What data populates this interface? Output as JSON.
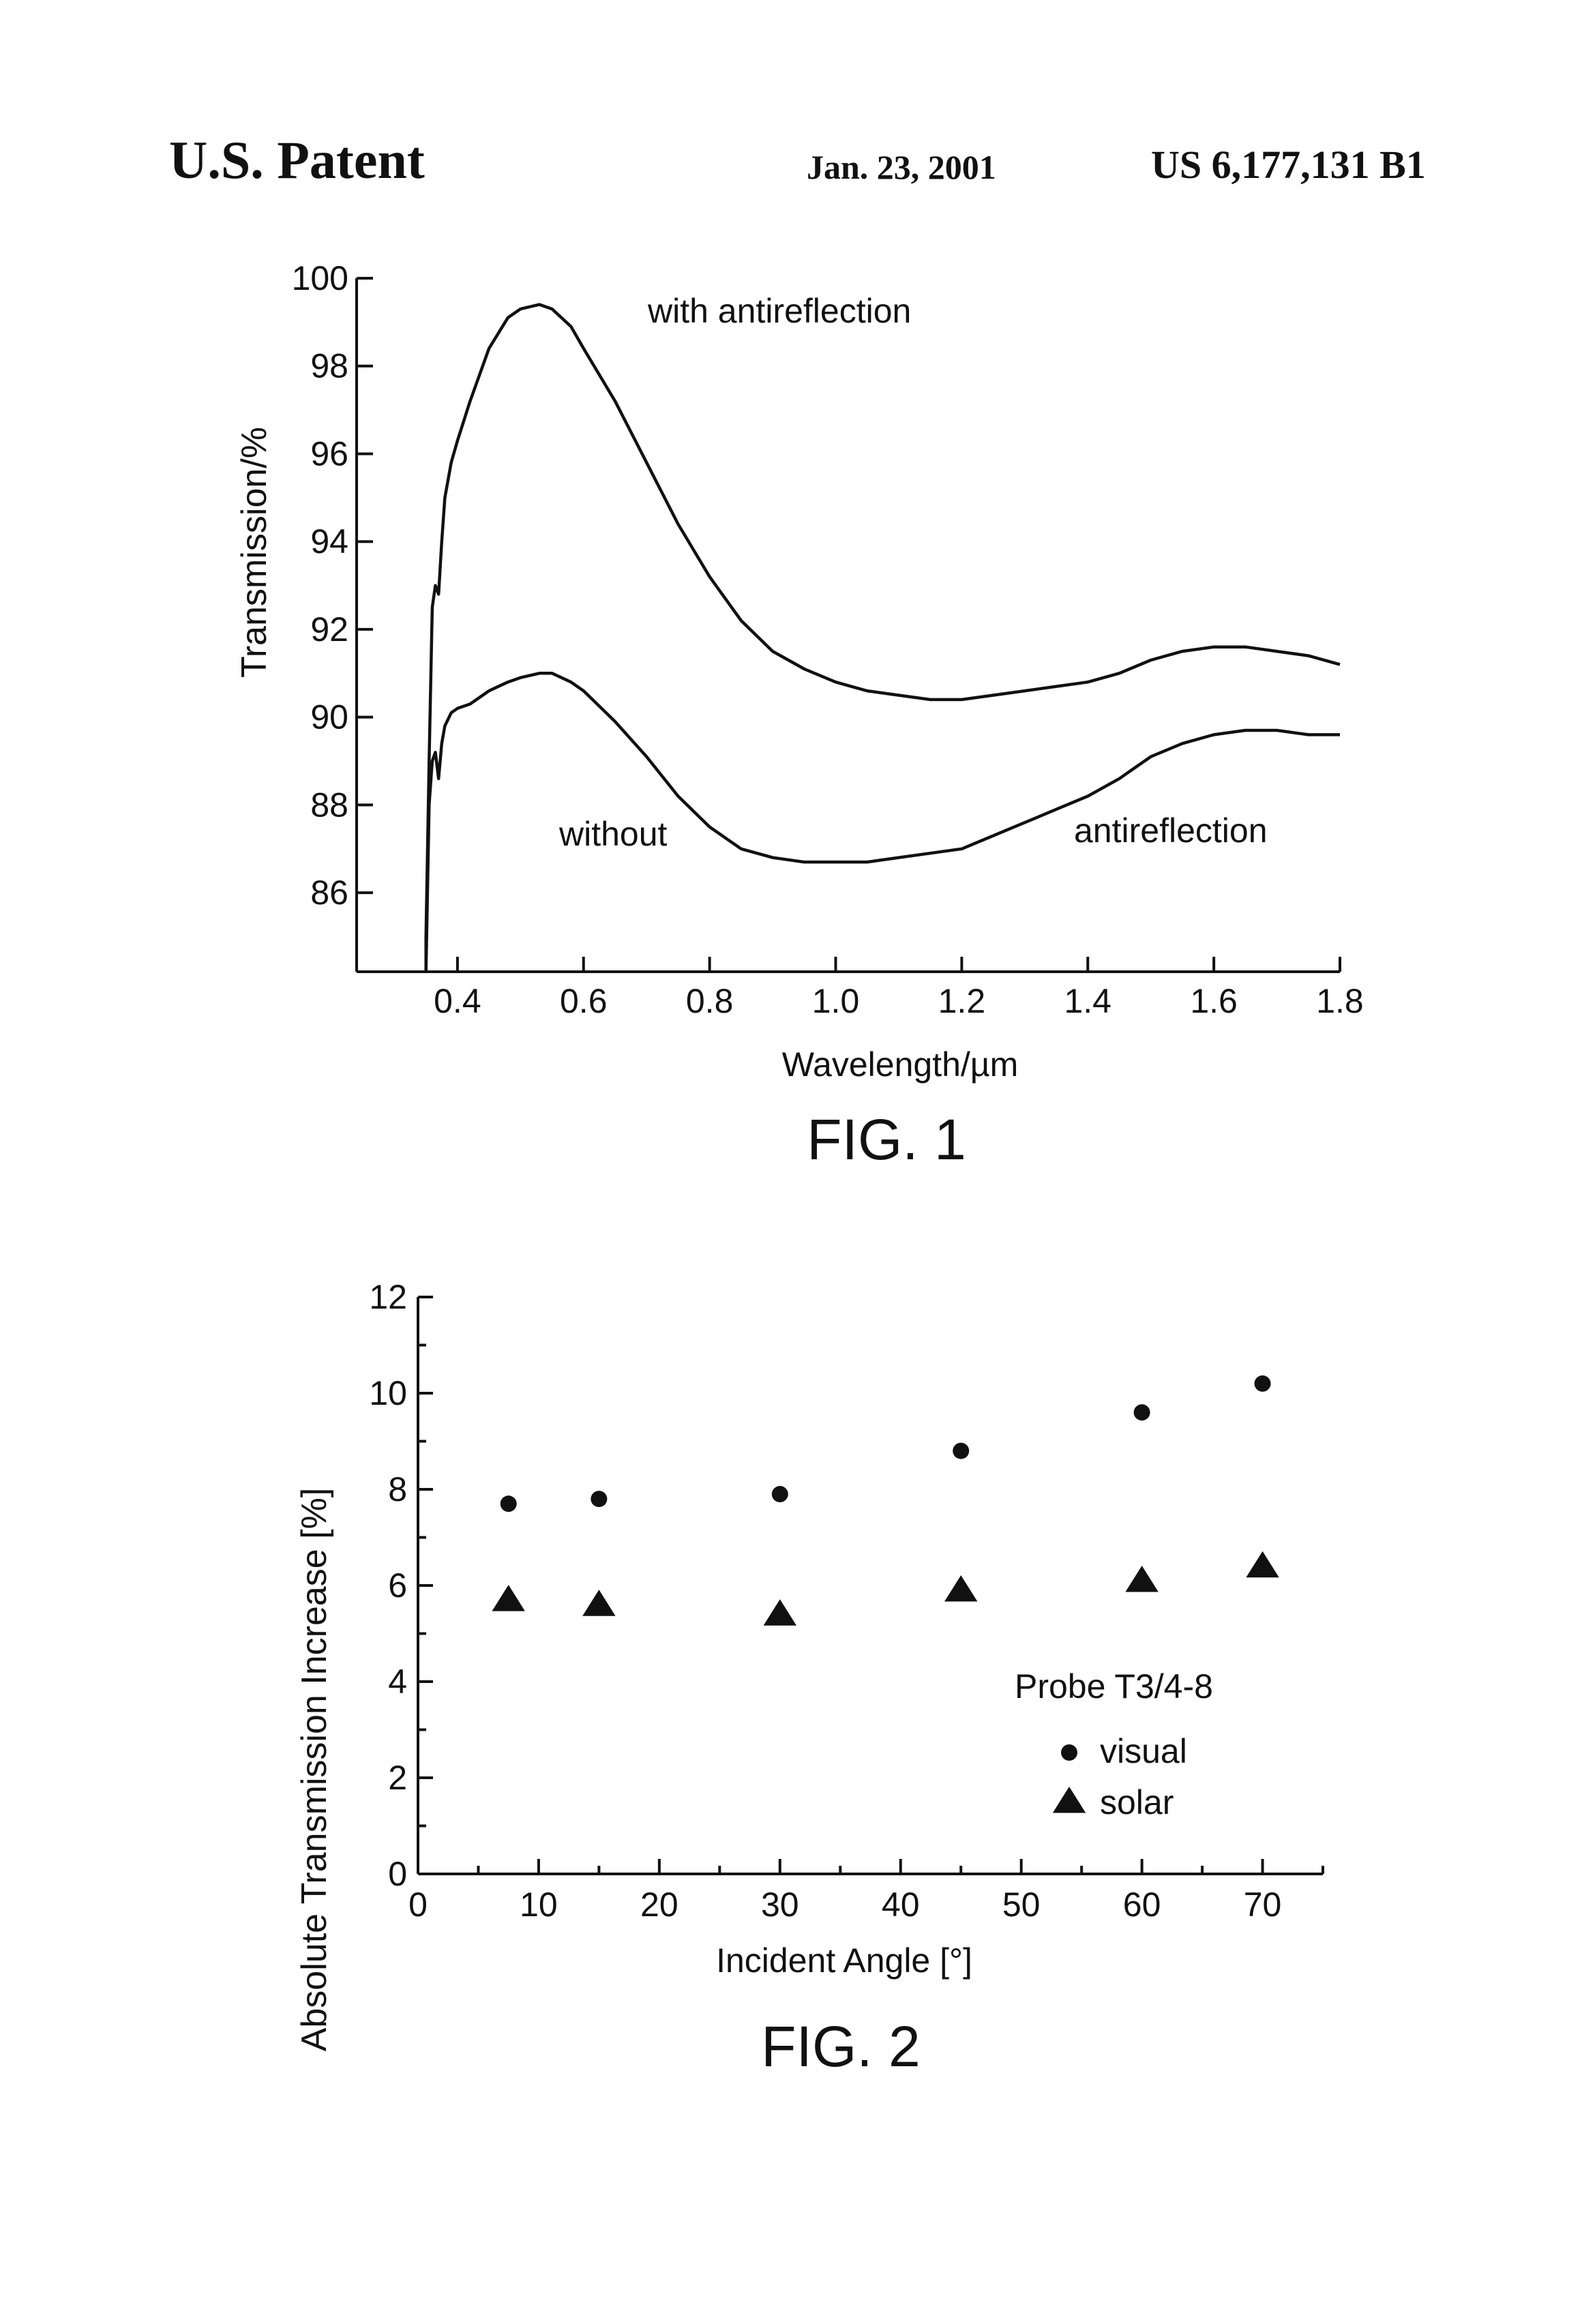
{
  "header": {
    "left": "U.S. Patent",
    "date": "Jan. 23, 2001",
    "number": "US 6,177,131 B1"
  },
  "chart_data": [
    {
      "type": "line",
      "figure_label": "FIG. 1",
      "xlabel": "Wavelength/µm",
      "ylabel": "Transmission/%",
      "xlim": [
        0.24,
        1.8
      ],
      "ylim": [
        84.2,
        100
      ],
      "x_ticks": [
        0.4,
        0.6,
        0.8,
        1.0,
        1.2,
        1.4,
        1.6,
        1.8
      ],
      "x_tick_labels": [
        "0.4",
        "0.6",
        "0.8",
        "1.0",
        "1.2",
        "1.4",
        "1.6",
        "1.8"
      ],
      "y_ticks": [
        86,
        88,
        90,
        92,
        94,
        96,
        98,
        100
      ],
      "y_tick_labels": [
        "86",
        "88",
        "90",
        "92",
        "94",
        "96",
        "98",
        "100"
      ],
      "grid": false,
      "annotations": {
        "with_anti": "with antireflection",
        "without": "without",
        "antireflection": "antireflection"
      },
      "series": [
        {
          "x": [
            0.35,
            0.355,
            0.36,
            0.365,
            0.37,
            0.375,
            0.38,
            0.39,
            0.4,
            0.42,
            0.45,
            0.48,
            0.5,
            0.53,
            0.55,
            0.58,
            0.6,
            0.65,
            0.7,
            0.75,
            0.8,
            0.85,
            0.9,
            0.95,
            1.0,
            1.05,
            1.1,
            1.15,
            1.2,
            1.25,
            1.3,
            1.35,
            1.4,
            1.45,
            1.5,
            1.55,
            1.6,
            1.65,
            1.7,
            1.75,
            1.8
          ],
          "y": [
            85.0,
            89.0,
            92.5,
            93.0,
            92.8,
            94.0,
            95.0,
            95.8,
            96.3,
            97.2,
            98.4,
            99.1,
            99.3,
            99.4,
            99.3,
            98.9,
            98.4,
            97.2,
            95.8,
            94.4,
            93.2,
            92.2,
            91.5,
            91.1,
            90.8,
            90.6,
            90.5,
            90.4,
            90.4,
            90.5,
            90.6,
            90.7,
            90.8,
            91.0,
            91.3,
            91.5,
            91.6,
            91.6,
            91.5,
            91.4,
            91.2
          ]
        },
        {
          "x": [
            0.35,
            0.355,
            0.36,
            0.365,
            0.37,
            0.375,
            0.38,
            0.39,
            0.4,
            0.42,
            0.45,
            0.48,
            0.5,
            0.53,
            0.55,
            0.58,
            0.6,
            0.65,
            0.7,
            0.75,
            0.8,
            0.85,
            0.9,
            0.95,
            1.0,
            1.05,
            1.1,
            1.15,
            1.2,
            1.25,
            1.3,
            1.35,
            1.4,
            1.45,
            1.5,
            1.55,
            1.6,
            1.65,
            1.7,
            1.75,
            1.8
          ],
          "y": [
            84.2,
            88.0,
            89.0,
            89.2,
            88.6,
            89.4,
            89.8,
            90.1,
            90.2,
            90.3,
            90.6,
            90.8,
            90.9,
            91.0,
            91.0,
            90.8,
            90.6,
            89.9,
            89.1,
            88.2,
            87.5,
            87.0,
            86.8,
            86.7,
            86.7,
            86.7,
            86.8,
            86.9,
            87.0,
            87.3,
            87.6,
            87.9,
            88.2,
            88.6,
            89.1,
            89.4,
            89.6,
            89.7,
            89.7,
            89.6,
            89.6
          ]
        }
      ]
    },
    {
      "type": "scatter",
      "figure_label": "FIG. 2",
      "xlabel": "Incident Angle [°]",
      "ylabel": "Absolute Transmission Increase [%]",
      "xlim": [
        0,
        75
      ],
      "ylim": [
        0,
        12
      ],
      "x_ticks": [
        0,
        10,
        20,
        30,
        40,
        50,
        60,
        70
      ],
      "x_tick_labels": [
        "0",
        "10",
        "20",
        "30",
        "40",
        "50",
        "60",
        "70"
      ],
      "y_ticks": [
        0,
        2,
        4,
        6,
        8,
        10,
        12
      ],
      "y_tick_labels": [
        "0",
        "2",
        "4",
        "6",
        "8",
        "10",
        "12"
      ],
      "grid": false,
      "legend_position": "right, below middle",
      "legend_title": "Probe T3/4-8",
      "series": [
        {
          "name": "visual",
          "marker": "circle",
          "x": [
            7.5,
            15,
            30,
            45,
            60,
            70
          ],
          "y": [
            7.7,
            7.8,
            7.9,
            8.8,
            9.6,
            10.2
          ]
        },
        {
          "name": "solar",
          "marker": "triangle",
          "x": [
            7.5,
            15,
            30,
            45,
            60,
            70
          ],
          "y": [
            5.7,
            5.6,
            5.4,
            5.9,
            6.1,
            6.4
          ]
        }
      ]
    }
  ]
}
